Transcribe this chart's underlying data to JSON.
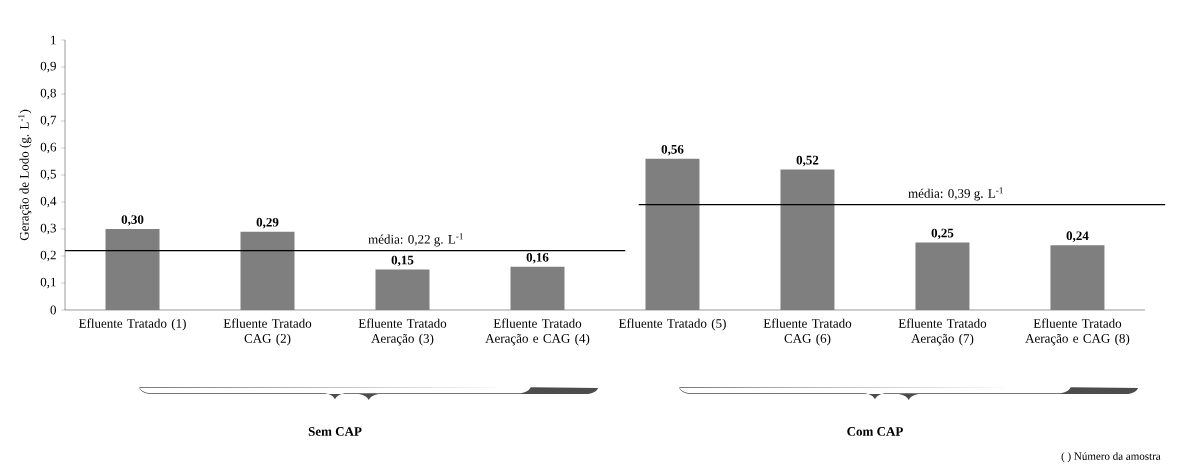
{
  "chart_data": {
    "type": "bar",
    "ylabel": "Geração de Lodo (g. L$^{-1}$)",
    "categories": [
      "Efluente Tratado (1)",
      "Efluente Tratado CAG (2)",
      "Efluente Tratado Aeração (3)",
      "Efluente Tratado Aeração e CAG (4)",
      "Efluente Tratado (5)",
      "Efluente Tratado CAG (6)",
      "Efluente Tratado Aeração (7)",
      "Efluente Tratado Aeração e CAG (8)"
    ],
    "values": [
      0.3,
      0.29,
      0.15,
      0.16,
      0.56,
      0.52,
      0.25,
      0.24
    ],
    "value_labels": [
      "0,30",
      "0,29",
      "0,15",
      "0,16",
      "0,56",
      "0,52",
      "0,25",
      "0,24"
    ],
    "color": "#7f7f7f",
    "ylim": [
      0,
      1
    ],
    "yticks": [
      0,
      {
        "value": 0.1,
        "label": "0,1"
      },
      {
        "value": 0.2,
        "label": "0,2"
      },
      {
        "value": 0.3,
        "label": "0,3"
      },
      {
        "value": 0.4,
        "label": "0,4"
      },
      {
        "value": 0.5,
        "label": "0,5"
      },
      {
        "value": 0.6,
        "label": "0,6"
      },
      {
        "value": 0.7,
        "label": "0,7"
      },
      {
        "value": 0.8,
        "label": "0,8"
      },
      {
        "value": 0.9,
        "label": "0,9"
      },
      1
    ],
    "ref_lines": [
      {
        "axis": "y",
        "value": 0.22,
        "label": "média: 0,22 g. L$^{-1}$",
        "color": "#000000"
      },
      {
        "axis": "y",
        "value": 0.39,
        "label": "média: 0,39 g. L$^{-1}$",
        "color": "#000000"
      }
    ],
    "annotations": [
      "Sem CAP",
      "Com CAP",
      "( ) Número da amostra"
    ]
  }
}
